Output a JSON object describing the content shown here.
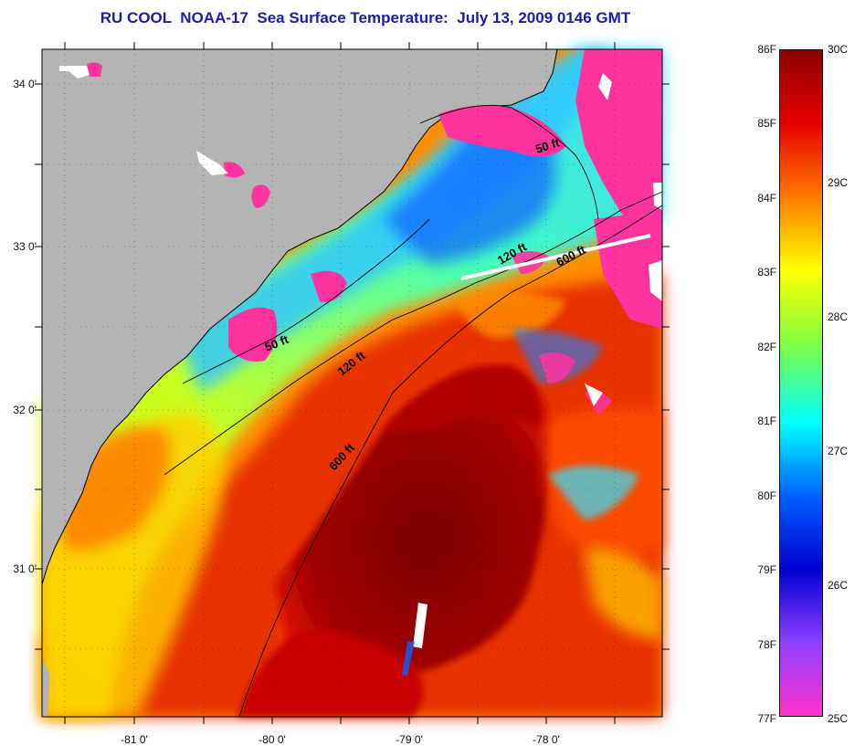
{
  "title": "RU COOL  NOAA-17  Sea Surface Temperature:  July 13, 2009 0146 GMT",
  "axes": {
    "lat_ticks": [
      {
        "label": "34 0'",
        "lat": 34
      },
      {
        "label": "33 0'",
        "lat": 33
      },
      {
        "label": "32 0'",
        "lat": 32
      },
      {
        "label": "31 0'",
        "lat": 31
      }
    ],
    "lon_ticks": [
      {
        "label": "-81 0'",
        "lon": -81
      },
      {
        "label": "-80 0'",
        "lon": -80
      },
      {
        "label": "-79 0'",
        "lon": -79
      },
      {
        "label": "-78 0'",
        "lon": -78
      }
    ]
  },
  "isobaths": [
    {
      "label": "50 ft"
    },
    {
      "label": "50 ft"
    },
    {
      "label": "120 ft"
    },
    {
      "label": "120 ft"
    },
    {
      "label": "600 ft"
    },
    {
      "label": "600 ft"
    }
  ],
  "colorbar": {
    "fahrenheit": [
      "86F",
      "85F",
      "84F",
      "83F",
      "82F",
      "81F",
      "80F",
      "79F",
      "78F",
      "77F"
    ],
    "celsius": [
      "30C",
      "29C",
      "28C",
      "27C",
      "26C",
      "25C"
    ],
    "range_f": [
      77,
      86
    ],
    "range_c": [
      25,
      30
    ]
  },
  "colors": {
    "land": "#b4b4b4",
    "cloud": "#ff33a0",
    "title": "#1c1ca8",
    "scale": [
      "#8b0000",
      "#e60000",
      "#ff7a00",
      "#ffff00",
      "#80ff40",
      "#00ffff",
      "#0060ff",
      "#0000d0",
      "#9040ff",
      "#ff33cc"
    ]
  }
}
